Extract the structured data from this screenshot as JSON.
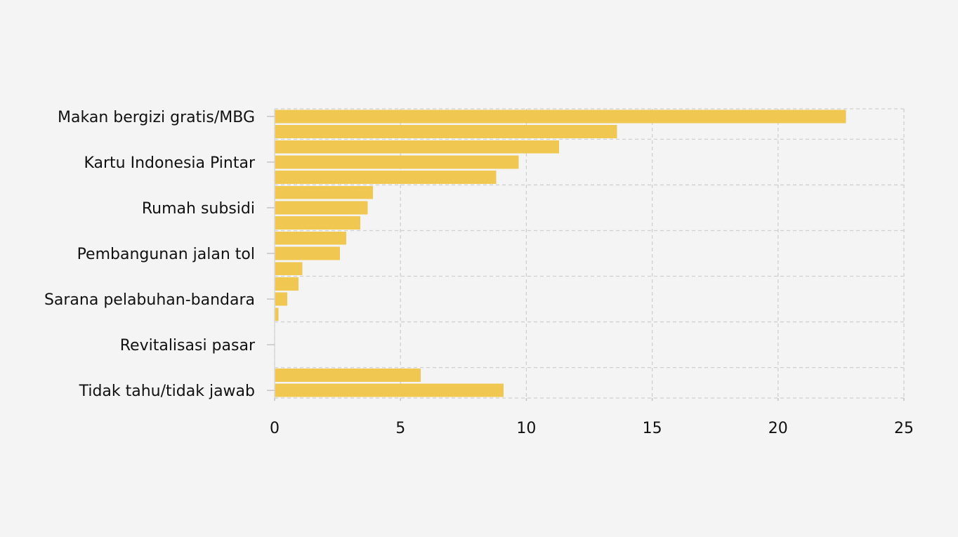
{
  "chart_data": {
    "type": "bar",
    "orientation": "horizontal",
    "title": "",
    "xlabel": "",
    "ylabel": "",
    "xlim": [
      0,
      25
    ],
    "x_ticks": [
      "0",
      "5",
      "10",
      "15",
      "20",
      "25"
    ],
    "grid": true,
    "legend": "none",
    "bar_color": "#f0c750",
    "categories": [
      "Makan bergizi gratis/MBG",
      "",
      "",
      "Kartu Indonesia Pintar",
      "",
      "",
      "Rumah subsidi",
      "",
      "",
      "Pembangunan jalan tol",
      "",
      "",
      "Sarana pelabuhan-bandara",
      "",
      "",
      "Revitalisasi pasar",
      "",
      "",
      "Tidak tahu/tidak jawab"
    ],
    "values": [
      22.7,
      13.6,
      11.3,
      9.7,
      8.8,
      3.9,
      3.7,
      3.4,
      2.85,
      2.6,
      1.1,
      0.95,
      0.5,
      0.15,
      0,
      0,
      0,
      5.8,
      9.1
    ]
  }
}
